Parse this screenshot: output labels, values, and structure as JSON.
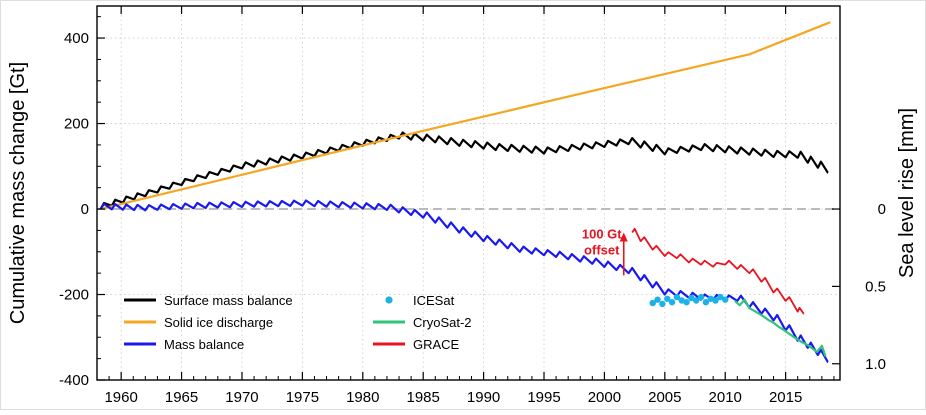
{
  "chart_data": {
    "type": "line",
    "ylabel": "Cumulative mass change [Gt]",
    "y2label": "Sea level rise [mm]",
    "xlim": [
      1958,
      2019.5
    ],
    "ylim": [
      -400,
      475
    ],
    "x_ticks": [
      1960,
      1965,
      1970,
      1975,
      1980,
      1985,
      1990,
      1995,
      2000,
      2005,
      2010,
      2015
    ],
    "y_ticks": [
      -400,
      -200,
      0,
      200,
      400
    ],
    "y2_ticks": [
      {
        "label": "0",
        "y": 0
      },
      {
        "label": "0.5",
        "y": -181
      },
      {
        "label": "1.0",
        "y": -362
      }
    ],
    "grid": true,
    "legend_position": "bottom-left",
    "zero_line_color": "#bbbbbb",
    "annotation": {
      "line1": "100 Gt",
      "line2": "offset",
      "x": 2001.6,
      "y_from": -155,
      "y_to": -55,
      "color": "#e8131f"
    },
    "series": [
      {
        "name": "Surface mass balance",
        "color": "#000000",
        "style": "sawtooth",
        "amplitude": 14,
        "points": [
          [
            1958.3,
            0
          ],
          [
            1962,
            30
          ],
          [
            1966,
            65
          ],
          [
            1970,
            95
          ],
          [
            1975,
            118
          ],
          [
            1980,
            148
          ],
          [
            1983,
            165
          ],
          [
            1985,
            160
          ],
          [
            1988,
            148
          ],
          [
            1991,
            138
          ],
          [
            1995,
            130
          ],
          [
            1999,
            142
          ],
          [
            2002,
            152
          ],
          [
            2005,
            128
          ],
          [
            2008,
            138
          ],
          [
            2011,
            130
          ],
          [
            2014,
            122
          ],
          [
            2016,
            120
          ],
          [
            2018.5,
            85
          ]
        ]
      },
      {
        "name": "Solid ice discharge",
        "color": "#f5a623",
        "style": "line",
        "points": [
          [
            1958.3,
            0
          ],
          [
            1985,
            183
          ],
          [
            2000,
            283
          ],
          [
            2012,
            362
          ],
          [
            2018.7,
            437
          ]
        ]
      },
      {
        "name": "Mass balance",
        "color": "#1919f0",
        "style": "sawtooth",
        "amplitude": 12,
        "points": [
          [
            1958.3,
            0
          ],
          [
            1962,
            -3
          ],
          [
            1966,
            2
          ],
          [
            1970,
            5
          ],
          [
            1975,
            8
          ],
          [
            1979,
            3
          ],
          [
            1982,
            -2
          ],
          [
            1985,
            -20
          ],
          [
            1988,
            -55
          ],
          [
            1990,
            -75
          ],
          [
            1993,
            -100
          ],
          [
            1996,
            -112
          ],
          [
            1999,
            -128
          ],
          [
            2002,
            -150
          ],
          [
            2005,
            -200
          ],
          [
            2008,
            -212
          ],
          [
            2011,
            -215
          ],
          [
            2014,
            -260
          ],
          [
            2016,
            -308
          ],
          [
            2018.5,
            -358
          ]
        ]
      },
      {
        "name": "ICESat",
        "color": "#1bb2e8",
        "style": "dots",
        "points": [
          [
            2004.0,
            -220
          ],
          [
            2004.4,
            -212
          ],
          [
            2004.8,
            -222
          ],
          [
            2005.2,
            -210
          ],
          [
            2005.6,
            -218
          ],
          [
            2006.0,
            -206
          ],
          [
            2006.4,
            -214
          ],
          [
            2006.8,
            -218
          ],
          [
            2007.2,
            -208
          ],
          [
            2007.6,
            -214
          ],
          [
            2008.0,
            -206
          ],
          [
            2008.4,
            -218
          ],
          [
            2008.8,
            -210
          ],
          [
            2009.2,
            -214
          ],
          [
            2009.6,
            -206
          ],
          [
            2010.0,
            -212
          ]
        ]
      },
      {
        "name": "CryoSat-2",
        "color": "#2fc47a",
        "style": "line",
        "points": [
          [
            2010.8,
            -215
          ],
          [
            2011.2,
            -225
          ],
          [
            2011.6,
            -212
          ],
          [
            2012,
            -232
          ],
          [
            2012.4,
            -238
          ],
          [
            2012.8,
            -245
          ],
          [
            2013.2,
            -252
          ],
          [
            2013.6,
            -260
          ],
          [
            2014,
            -266
          ],
          [
            2014.4,
            -275
          ],
          [
            2014.8,
            -282
          ],
          [
            2015.2,
            -290
          ],
          [
            2015.6,
            -298
          ],
          [
            2016,
            -305
          ],
          [
            2016.4,
            -312
          ],
          [
            2016.8,
            -318
          ],
          [
            2017.2,
            -326
          ],
          [
            2017.6,
            -334
          ],
          [
            2018,
            -320
          ],
          [
            2018.3,
            -345
          ]
        ]
      },
      {
        "name": "GRACE",
        "color": "#e8131f",
        "style": "sawtooth",
        "amplitude": 9,
        "points": [
          [
            2002.3,
            -55
          ],
          [
            2003,
            -75
          ],
          [
            2004,
            -95
          ],
          [
            2005,
            -110
          ],
          [
            2006,
            -115
          ],
          [
            2007,
            -125
          ],
          [
            2008,
            -130
          ],
          [
            2009,
            -135
          ],
          [
            2010,
            -130
          ],
          [
            2011,
            -140
          ],
          [
            2012,
            -150
          ],
          [
            2013,
            -170
          ],
          [
            2014,
            -195
          ],
          [
            2015,
            -215
          ],
          [
            2016,
            -240
          ],
          [
            2016.5,
            -245
          ]
        ]
      }
    ]
  }
}
